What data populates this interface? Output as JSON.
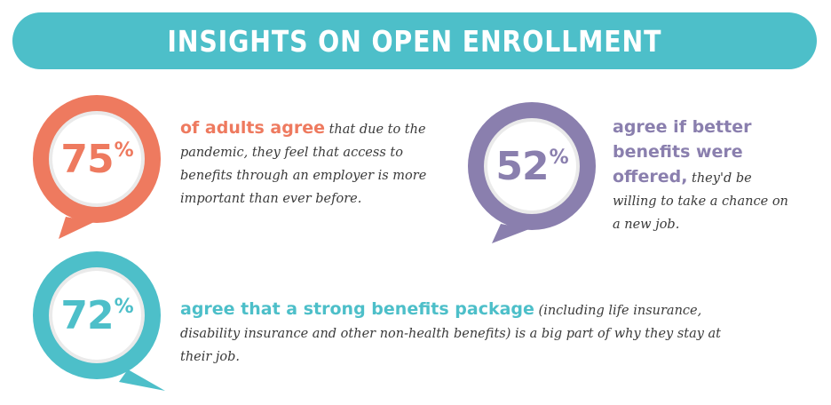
{
  "header": {
    "title": "INSIGHTS ON OPEN ENROLLMENT"
  },
  "colors": {
    "teal": "#4dbfc9",
    "coral": "#ee7a5f",
    "purple": "#8a7fae",
    "ring": "#f2f2f2"
  },
  "stats": [
    {
      "value": "75",
      "unit": "%",
      "highlight": "of adults agree",
      "body": " that due to the pandemic, they feel that access to benefits through an employer is more important than ever before.",
      "bubble_color": "coral",
      "icon": "speech-bubble-icon"
    },
    {
      "value": "52",
      "unit": "%",
      "highlight": "agree if better benefits were offered,",
      "body": " they'd be willing to take a chance on a new job.",
      "bubble_color": "purple",
      "icon": "speech-bubble-icon"
    },
    {
      "value": "72",
      "unit": "%",
      "highlight": "agree that a strong benefits package",
      "body": " (including life insurance, disability insurance and other non-health benefits) is a big part of why they stay at their job.",
      "bubble_color": "teal",
      "icon": "speech-bubble-icon"
    }
  ]
}
